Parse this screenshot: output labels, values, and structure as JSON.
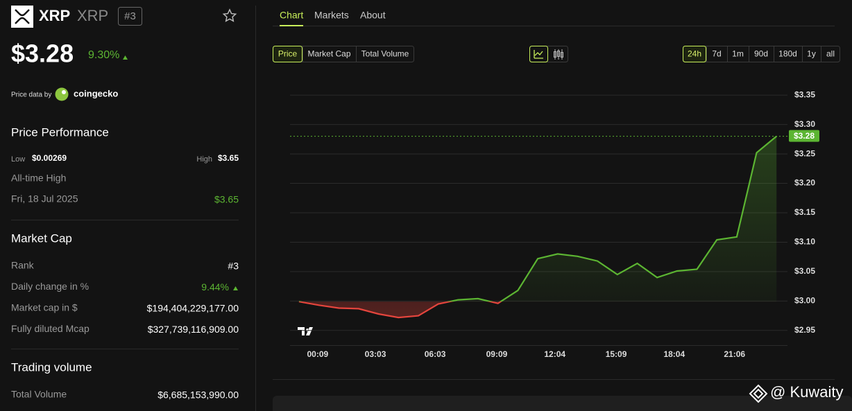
{
  "header": {
    "name": "XRP",
    "symbol": "XRP",
    "rank": "#3",
    "price": "$3.28",
    "change": "9.30%",
    "price_data_by": "Price data by",
    "provider": "coingecko"
  },
  "performance": {
    "title": "Price Performance",
    "low_label": "Low",
    "low": "$0.00269",
    "high_label": "High",
    "high": "$3.65",
    "ath_label": "All-time High",
    "ath_date": "Fri, 18 Jul 2025",
    "ath_value": "$3.65"
  },
  "market_cap": {
    "title": "Market Cap",
    "rows": [
      [
        "Rank",
        "#3"
      ],
      [
        "Daily change in %",
        "9.44%"
      ],
      [
        "Market cap in $",
        "$194,404,229,177.00"
      ],
      [
        "Fully diluted Mcap",
        "$327,739,116,909.00"
      ]
    ]
  },
  "trading_volume": {
    "title": "Trading volume",
    "rows": [
      [
        "Total Volume",
        "$6,685,153,990.00"
      ]
    ]
  },
  "tabs": [
    "Chart",
    "Markets",
    "About"
  ],
  "metric_buttons": [
    "Price",
    "Market Cap",
    "Total Volume"
  ],
  "range_buttons": [
    "24h",
    "7d",
    "1m",
    "90d",
    "180d",
    "1y",
    "all"
  ],
  "watermark": "@ Kuwaity",
  "chart_data": {
    "type": "line",
    "x": [
      0,
      1,
      2,
      3,
      4,
      5,
      6,
      7,
      8,
      9,
      10,
      11,
      12,
      13,
      14,
      15,
      16,
      17,
      18,
      19,
      20,
      21,
      22,
      23,
      24
    ],
    "values": [
      2.999,
      2.993,
      2.988,
      2.987,
      2.978,
      2.972,
      2.975,
      2.995,
      3.002,
      3.004,
      2.996,
      3.018,
      3.072,
      3.08,
      3.076,
      3.068,
      3.045,
      3.064,
      3.04,
      3.051,
      3.054,
      3.104,
      3.109,
      3.252,
      3.28
    ],
    "up_color": "#5cb532",
    "down_color": "#e5453d",
    "current_price_label": "$3.28",
    "xlim": [
      -0.45,
      24.55
    ],
    "xticks": [
      {
        "value": 0.94,
        "label": "00:09"
      },
      {
        "value": 3.84,
        "label": "03:03"
      },
      {
        "value": 6.84,
        "label": "06:03"
      },
      {
        "value": 9.94,
        "label": "09:09"
      },
      {
        "value": 12.86,
        "label": "12:04"
      },
      {
        "value": 15.94,
        "label": "15:09"
      },
      {
        "value": 18.86,
        "label": "18:04"
      },
      {
        "value": 21.89,
        "label": "21:06"
      }
    ],
    "ylim": [
      2.925,
      3.375
    ],
    "yticks": [
      {
        "value": 2.95,
        "label": "$2.95"
      },
      {
        "value": 3.0,
        "label": "$3.00"
      },
      {
        "value": 3.05,
        "label": "$3.05"
      },
      {
        "value": 3.1,
        "label": "$3.10"
      },
      {
        "value": 3.15,
        "label": "$3.15"
      },
      {
        "value": 3.2,
        "label": "$3.20"
      },
      {
        "value": 3.25,
        "label": "$3.25"
      },
      {
        "value": 3.3,
        "label": "$3.30"
      },
      {
        "value": 3.35,
        "label": "$3.35"
      }
    ],
    "grid": true
  }
}
